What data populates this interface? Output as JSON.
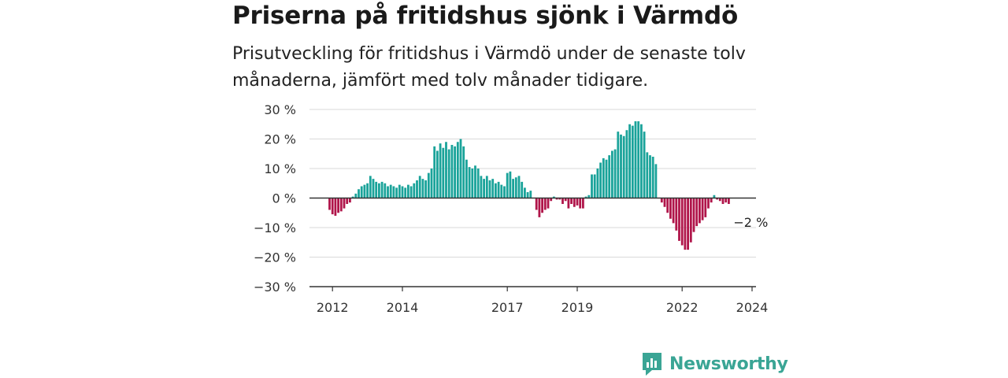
{
  "chart_data": {
    "type": "bar",
    "title": "Priserna på fritidshus sjönk i Värmdö",
    "subtitle": "Prisutveckling för fritidshus i Värmdö under de senaste tolv månaderna, jämfört med tolv månader tidigare.",
    "ylabel": "",
    "xlabel": "",
    "ylim": [
      -30,
      30
    ],
    "yticks": [
      30,
      20,
      10,
      0,
      -10,
      -20,
      -30
    ],
    "ytick_labels": [
      "30 %",
      "20 %",
      "10 %",
      "0 %",
      "−10 %",
      "−20 %",
      "−30 %"
    ],
    "xtick_labels": [
      "2012",
      "2014",
      "2017",
      "2019",
      "2022",
      "2024"
    ],
    "grid": true,
    "positive_color": "#1aa39a",
    "negative_color": "#b0154a",
    "end_label": "−2 %",
    "start": "2011-12",
    "frequency": "monthly",
    "values": [
      -4.0,
      -5.5,
      -6.0,
      -5.0,
      -4.5,
      -3.5,
      -2.0,
      -1.5,
      0.5,
      1.5,
      3.0,
      4.0,
      4.5,
      5.0,
      7.5,
      6.5,
      5.5,
      5.0,
      5.5,
      5.0,
      4.0,
      4.5,
      4.0,
      3.5,
      4.5,
      4.0,
      3.5,
      4.5,
      4.0,
      5.0,
      6.0,
      7.5,
      6.5,
      6.0,
      8.5,
      10.0,
      17.5,
      16.0,
      18.5,
      17.0,
      19.0,
      16.5,
      18.0,
      17.5,
      19.0,
      20.0,
      17.5,
      13.0,
      10.5,
      10.0,
      11.0,
      10.0,
      7.5,
      6.5,
      7.5,
      6.0,
      6.5,
      5.0,
      5.5,
      4.5,
      4.0,
      8.5,
      9.0,
      6.5,
      7.0,
      7.5,
      5.5,
      3.5,
      2.0,
      2.5,
      0.0,
      -4.0,
      -6.5,
      -5.0,
      -4.0,
      -3.5,
      -1.0,
      0.5,
      -0.5,
      -0.5,
      -2.0,
      -1.0,
      -3.5,
      -2.0,
      -3.0,
      -2.5,
      -3.5,
      -3.5,
      0.5,
      1.0,
      8.0,
      8.0,
      10.0,
      12.0,
      13.5,
      13.0,
      14.5,
      16.0,
      16.5,
      22.5,
      21.5,
      21.0,
      23.0,
      25.0,
      24.5,
      26.0,
      26.0,
      25.0,
      22.5,
      15.5,
      14.5,
      14.0,
      11.5,
      0.0,
      -1.5,
      -3.0,
      -5.0,
      -7.0,
      -8.5,
      -11.0,
      -14.5,
      -16.0,
      -17.5,
      -17.5,
      -15.0,
      -11.5,
      -9.5,
      -8.5,
      -7.5,
      -6.5,
      -3.5,
      -1.5,
      1.0,
      -0.5,
      -1.0,
      -2.0,
      -1.5,
      -2.0
    ]
  },
  "logo": {
    "name": "Newsworthy",
    "color": "#3aa595"
  }
}
